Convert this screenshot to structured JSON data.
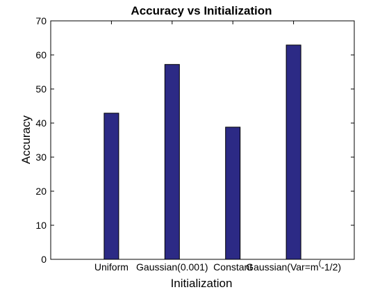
{
  "chart_data": {
    "type": "bar",
    "title": "Accuracy vs Initialization",
    "xlabel": "Initialization",
    "ylabel": "Accuracy",
    "categories": [
      "Uniform",
      "Gaussian(0.001)",
      "Constant",
      "Gaussian(Var=m^(-1/2)"
    ],
    "category_display": [
      {
        "main": "Uniform",
        "sup": ""
      },
      {
        "main": "Gaussian(0.001)",
        "sup": ""
      },
      {
        "main": "Constant",
        "sup": ""
      },
      {
        "main": "Gaussian(Var=m",
        "sup": "(",
        "tail": "-1/2)"
      }
    ],
    "values": [
      42.9,
      57.2,
      38.8,
      62.9
    ],
    "ylim": [
      0,
      70
    ],
    "yticks": [
      0,
      10,
      20,
      30,
      40,
      50,
      60,
      70
    ],
    "grid": false,
    "legend": "none",
    "bar_color": "#2c2a85",
    "edge_color": "#000000"
  }
}
